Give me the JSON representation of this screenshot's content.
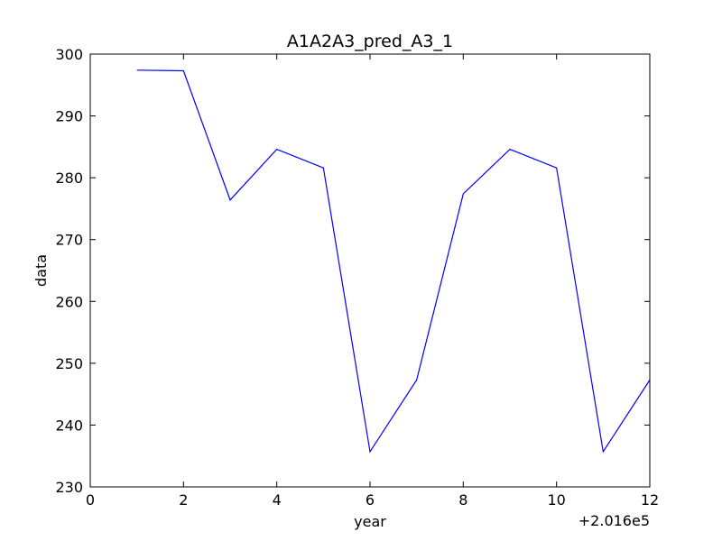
{
  "chart_data": {
    "type": "line",
    "title": "A1A2A3_pred_A3_1",
    "xlabel": "year",
    "ylabel": "data",
    "x_offset_label": "+2.016e5",
    "xlim": [
      0,
      12
    ],
    "ylim": [
      230,
      300
    ],
    "xticks": [
      0,
      2,
      4,
      6,
      8,
      10,
      12
    ],
    "yticks": [
      230,
      240,
      250,
      260,
      270,
      280,
      290,
      300
    ],
    "grid": false,
    "series": [
      {
        "name": "data",
        "color": "#0000ff",
        "x": [
          1,
          2,
          3,
          4,
          5,
          6,
          7,
          8,
          9,
          10,
          11,
          12
        ],
        "values": [
          297.4,
          297.3,
          276.4,
          284.6,
          281.6,
          235.7,
          247.3,
          277.4,
          284.6,
          281.6,
          235.7,
          247.3
        ]
      }
    ]
  }
}
